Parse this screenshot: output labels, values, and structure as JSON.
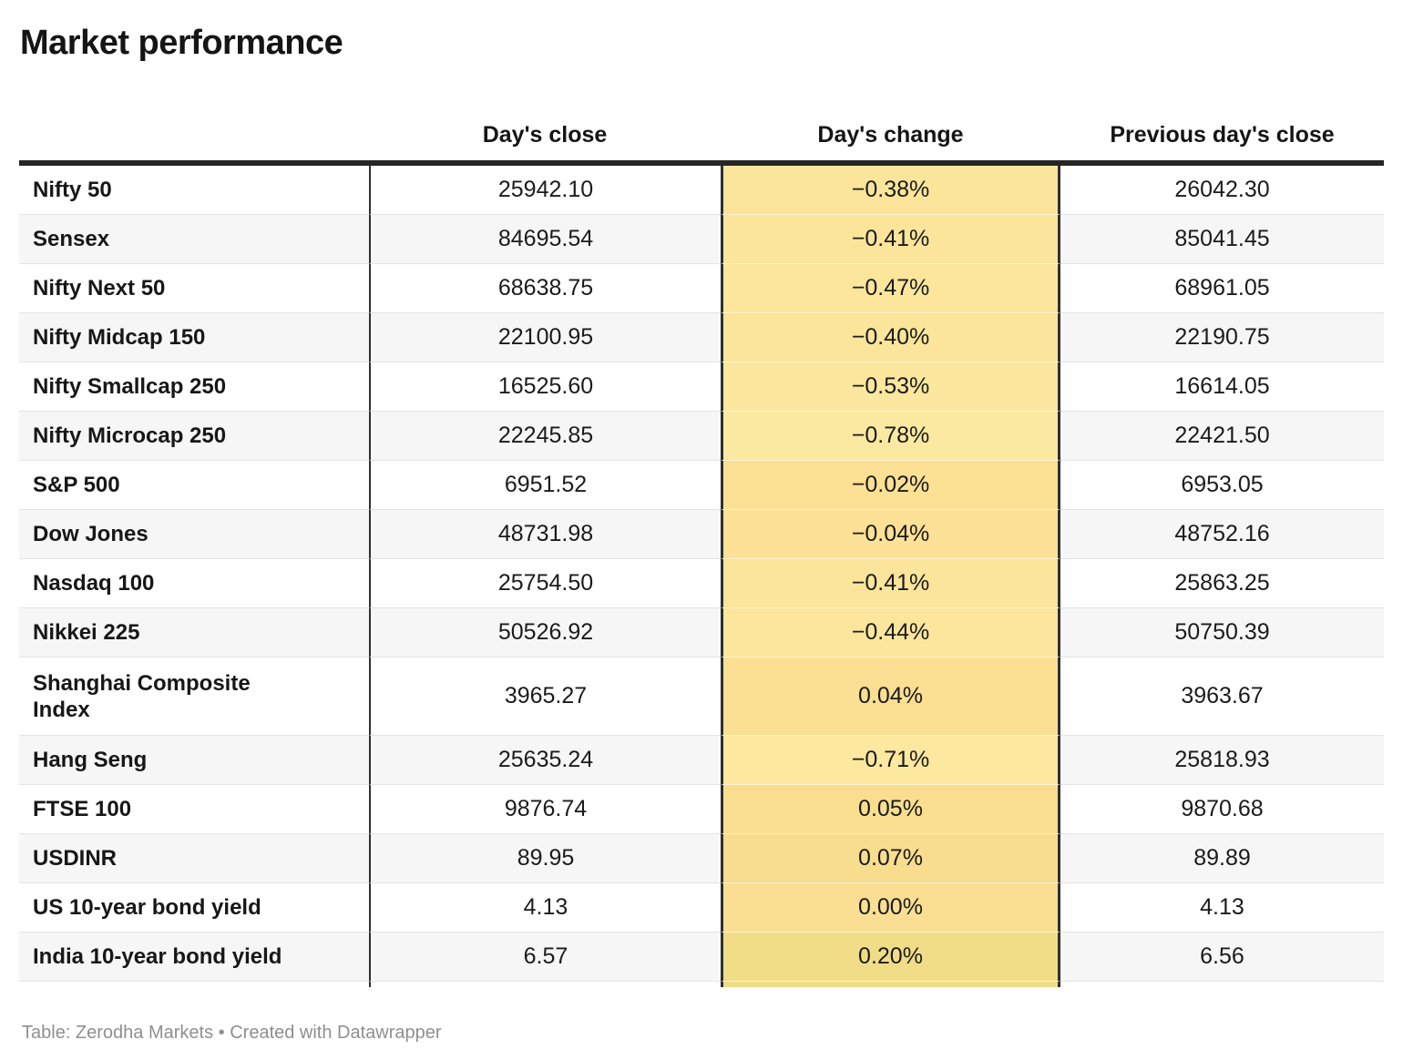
{
  "title": "Market performance",
  "footer": "Table: Zerodha Markets • Created with Datawrapper",
  "style": {
    "heading_color": "#151515",
    "top_border_color": "#262626",
    "divider_color": "#303030",
    "stripe_color": "#f6f6f6",
    "row_separator_color": "#e4e4e4",
    "footer_color": "#8f8f8f"
  },
  "chart_data": {
    "type": "table",
    "columns": [
      "",
      "Day's close",
      "Day's change",
      "Previous day's close"
    ],
    "heatmap_column": "Day's change",
    "rows": [
      {
        "label": "Nifty 50",
        "close": "25942.10",
        "change": "−0.38%",
        "prev": "26042.30",
        "heat": "#fbe59b"
      },
      {
        "label": "Sensex",
        "close": "84695.54",
        "change": "−0.41%",
        "prev": "85041.45",
        "heat": "#fbe59b"
      },
      {
        "label": "Nifty Next 50",
        "close": "68638.75",
        "change": "−0.47%",
        "prev": "68961.05",
        "heat": "#fbe69c"
      },
      {
        "label": "Nifty Midcap 150",
        "close": "22100.95",
        "change": "−0.40%",
        "prev": "22190.75",
        "heat": "#fbe59b"
      },
      {
        "label": "Nifty Smallcap 250",
        "close": "16525.60",
        "change": "−0.53%",
        "prev": "16614.05",
        "heat": "#fbe79d"
      },
      {
        "label": "Nifty Microcap 250",
        "close": "22245.85",
        "change": "−0.78%",
        "prev": "22421.50",
        "heat": "#fce9a1"
      },
      {
        "label": "S&P 500",
        "close": "6951.52",
        "change": "−0.02%",
        "prev": "6953.05",
        "heat": "#fce195"
      },
      {
        "label": "Dow Jones",
        "close": "48731.98",
        "change": "−0.04%",
        "prev": "48752.16",
        "heat": "#fce196"
      },
      {
        "label": "Nasdaq 100",
        "close": "25754.50",
        "change": "−0.41%",
        "prev": "25863.25",
        "heat": "#fbe59b"
      },
      {
        "label": "Nikkei 225",
        "close": "50526.92",
        "change": "−0.44%",
        "prev": "50750.39",
        "heat": "#fbe69c"
      },
      {
        "label": "Shanghai Composite\nIndex",
        "close": "3965.27",
        "change": "0.04%",
        "prev": "3963.67",
        "heat": "#fbdf92"
      },
      {
        "label": "Hang Seng",
        "close": "25635.24",
        "change": "−0.71%",
        "prev": "25818.93",
        "heat": "#fce89f"
      },
      {
        "label": "FTSE 100",
        "close": "9876.74",
        "change": "0.05%",
        "prev": "9870.68",
        "heat": "#fade90"
      },
      {
        "label": "USDINR",
        "close": "89.95",
        "change": "0.07%",
        "prev": "89.89",
        "heat": "#f9dd8f"
      },
      {
        "label": "US 10-year bond yield",
        "close": "4.13",
        "change": "0.00%",
        "prev": "4.13",
        "heat": "#fadf93"
      },
      {
        "label": "India 10-year bond yield",
        "close": "6.57",
        "change": "0.20%",
        "prev": "6.56",
        "heat": "#f1dd87"
      }
    ]
  }
}
